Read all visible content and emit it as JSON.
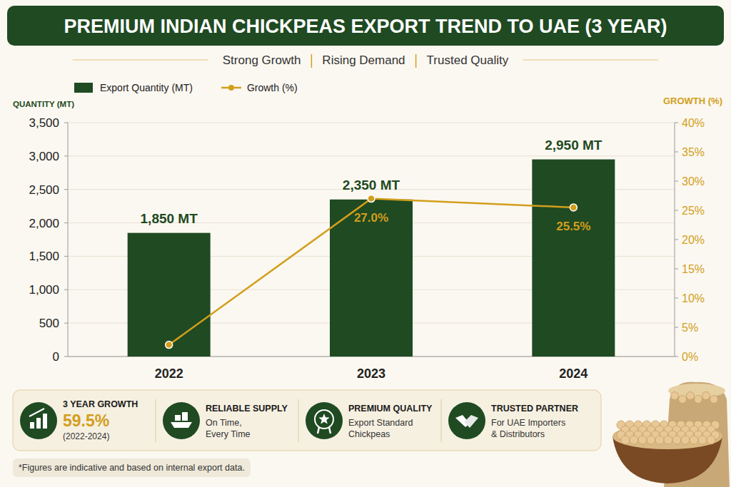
{
  "chart_data": {
    "type": "bar",
    "title": "PREMIUM INDIAN CHICKPEAS EXPORT TREND TO UAE (3 YEAR)",
    "subtitle": [
      "Strong Growth",
      "Rising Demand",
      "Trusted Quality"
    ],
    "y_label": "QUANTITY (MT)",
    "y2_label": "GROWTH (%)",
    "categories": [
      "2022",
      "2023",
      "2024"
    ],
    "series": [
      {
        "name": "Export Quantity (MT)",
        "type": "bar",
        "color": "#1f4a22",
        "values": [
          1850,
          2350,
          2950
        ],
        "value_labels": [
          "1,850 MT",
          "2,350 MT",
          "2,950 MT"
        ]
      },
      {
        "name": "Growth (%)",
        "type": "line",
        "axis": "y2",
        "color": "#d39e1c",
        "marker": "circle",
        "values": [
          2,
          27.0,
          25.5
        ],
        "value_labels": [
          null,
          "27.0%",
          "25.5%"
        ]
      }
    ],
    "ylim": [
      0,
      3500
    ],
    "yticks": [
      0,
      500,
      {
        "value": 1000,
        "label": "1,000"
      },
      {
        "value": 1500,
        "label": "1,500"
      },
      {
        "value": 2000,
        "label": "2,000"
      },
      {
        "value": 2500,
        "label": "2,500"
      },
      {
        "value": 3000,
        "label": "3,000"
      },
      {
        "value": 3500,
        "label": "3,500"
      }
    ],
    "y2lim": [
      0,
      40
    ],
    "y2ticks": [
      {
        "value": 0,
        "label": "0%"
      },
      {
        "value": 5,
        "label": "5%"
      },
      {
        "value": 10,
        "label": "10%"
      },
      {
        "value": 15,
        "label": "15%"
      },
      {
        "value": 20,
        "label": "20%"
      },
      {
        "value": 25,
        "label": "25%"
      },
      {
        "value": 30,
        "label": "30%"
      },
      {
        "value": 35,
        "label": "35%"
      },
      {
        "value": 40,
        "label": "40%"
      }
    ],
    "grid": true,
    "legend": "top-left",
    "data_labels": true,
    "annotations": [
      {
        "title": "3 YEAR GROWTH",
        "highlight": "59.5%",
        "lines": [
          "(2022-2024)"
        ]
      },
      {
        "title": "RELIABLE SUPPLY",
        "lines": [
          "On Time,",
          "Every Time"
        ]
      },
      {
        "title": "PREMIUM QUALITY",
        "lines": [
          "Export Standard",
          "Chickpeas"
        ]
      },
      {
        "title": "TRUSTED PARTNER",
        "lines": [
          "For UAE Importers",
          "& Distributors"
        ]
      }
    ],
    "note": "*Figures are indicative and based on internal export data."
  }
}
